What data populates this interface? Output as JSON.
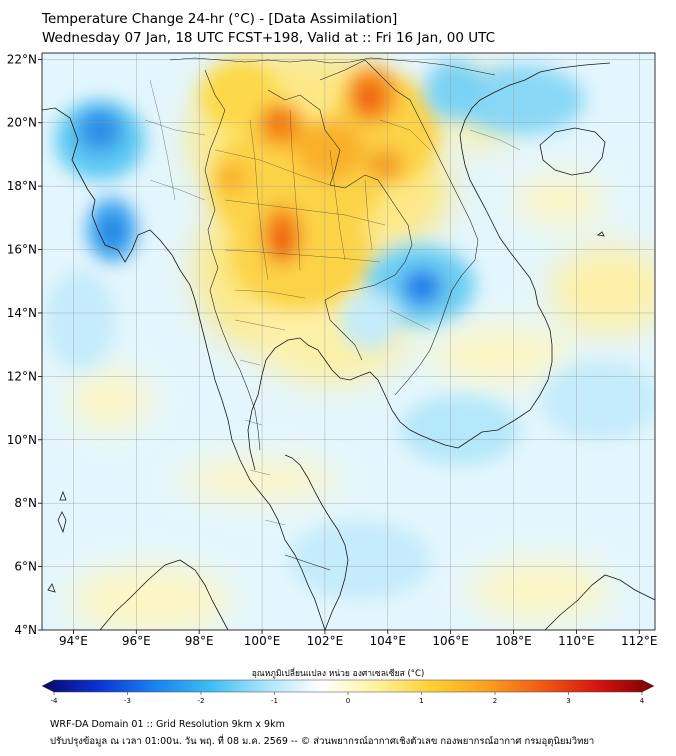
{
  "header": {
    "title_line1": "Temperature Change 24-hr (°C) - [Data Assimilation]",
    "title_line2": "Wednesday 07 Jan, 18 UTC FCST+198, Valid at :: Fri 16 Jan, 00 UTC"
  },
  "map": {
    "lat_labels": [
      "22°N",
      "20°N",
      "18°N",
      "16°N",
      "14°N",
      "12°N",
      "10°N",
      "8°N",
      "6°N",
      "4°N"
    ],
    "lon_labels": [
      "94°E",
      "96°E",
      "98°E",
      "100°E",
      "102°E",
      "104°E",
      "106°E",
      "108°E",
      "110°E",
      "112°E"
    ],
    "lat_range": [
      4,
      22.2
    ],
    "lon_range": [
      93,
      112.5
    ],
    "background_color": "#e4f6fd",
    "features": [
      {
        "name": "warm-north-thailand",
        "lon": 100.6,
        "lat": 18.2,
        "value": 1.3
      },
      {
        "name": "hot-chiang-mai",
        "lon": 100.5,
        "lat": 19.9,
        "value": 2.3
      },
      {
        "name": "hot-central-thailand",
        "lon": 100.8,
        "lat": 16.2,
        "value": 2.5
      },
      {
        "name": "hot-laos-north",
        "lon": 103.2,
        "lat": 20.6,
        "value": 2.3
      },
      {
        "name": "warm-laos-central",
        "lon": 103.6,
        "lat": 18.6,
        "value": 1.6
      },
      {
        "name": "warm-peninsula",
        "lon": 99.3,
        "lat": 13.4,
        "value": 1.1
      },
      {
        "name": "cold-myanmar-coast",
        "lon": 94.8,
        "lat": 19.8,
        "value": -2.4
      },
      {
        "name": "cold-myanmar-south",
        "lon": 95.5,
        "lat": 16.6,
        "value": -2.2
      },
      {
        "name": "cold-cambodia",
        "lon": 105.0,
        "lat": 14.9,
        "value": -2.6
      },
      {
        "name": "cool-gulf-of-tonkin",
        "lon": 107.6,
        "lat": 20.3,
        "value": -1.3
      },
      {
        "name": "cool-south-china-sea",
        "lon": 109.5,
        "lat": 13.0,
        "value": -0.6
      },
      {
        "name": "warm-east-sea",
        "lon": 111.3,
        "lat": 14.8,
        "value": 0.8
      }
    ]
  },
  "colorbar": {
    "title": "อุณหภูมิเปลี่ยนแปลง หน่วย องศาเซลเซียส (°C)",
    "ticks": [
      "-4",
      "-3",
      "-2",
      "-1",
      "0",
      "1",
      "2",
      "3",
      "4"
    ],
    "range": [
      -4,
      4
    ],
    "colors": [
      "#08086a",
      "#0a32d2",
      "#1a80ee",
      "#3bbcf2",
      "#a8e4fa",
      "#ffffff",
      "#fff3a0",
      "#fdd033",
      "#f9a020",
      "#ef5a14",
      "#d41410",
      "#7a0000"
    ]
  },
  "footer": {
    "line1": "WRF-DA Domain 01 :: Grid Resolution 9km x 9km",
    "line2": "ปรับปรุงข้อมูล ณ เวลา 01:00น. วัน พฤ. ที่ 08 ม.ค. 2569 -- © ส่วนพยากรณ์อากาศเชิงตัวเลข กองพยากรณ์อากาศ กรมอุตุนิยมวิทยา"
  }
}
